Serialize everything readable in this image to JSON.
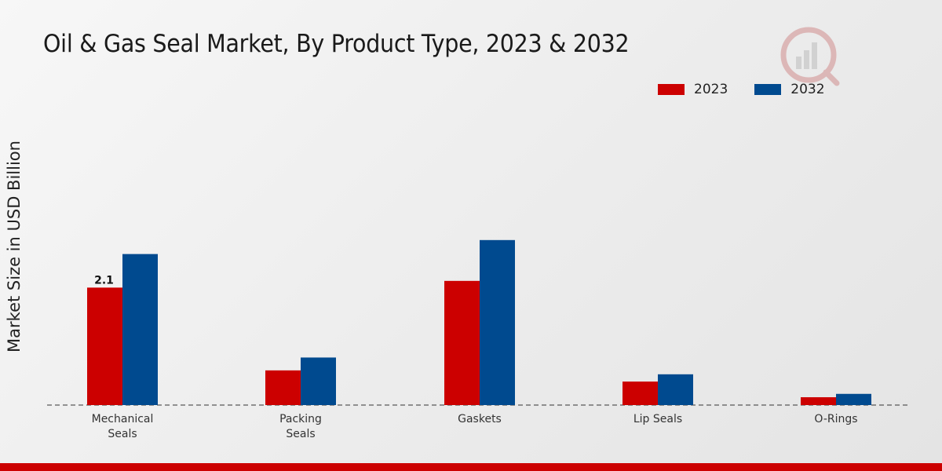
{
  "chart_data": {
    "type": "bar",
    "title": "Oil & Gas Seal Market, By Product Type, 2023 & 2032",
    "xlabel": "",
    "ylabel": "Market Size in USD Billion",
    "categories": [
      [
        "Mechanical",
        "Seals"
      ],
      [
        "Packing",
        "Seals"
      ],
      [
        "Gaskets"
      ],
      [
        "Lip Seals"
      ],
      [
        "O-Rings"
      ]
    ],
    "series": [
      {
        "name": "2023",
        "color": "#cc0000",
        "values": [
          2.1,
          0.62,
          2.22,
          0.42,
          0.14
        ]
      },
      {
        "name": "2032",
        "color": "#004a8f",
        "values": [
          2.7,
          0.85,
          2.95,
          0.55,
          0.2
        ]
      }
    ],
    "data_labels": [
      {
        "series": 0,
        "index": 0,
        "text": "2.1"
      }
    ],
    "ylim": [
      0,
      6.4
    ],
    "legend": "top-right",
    "grid": false
  }
}
